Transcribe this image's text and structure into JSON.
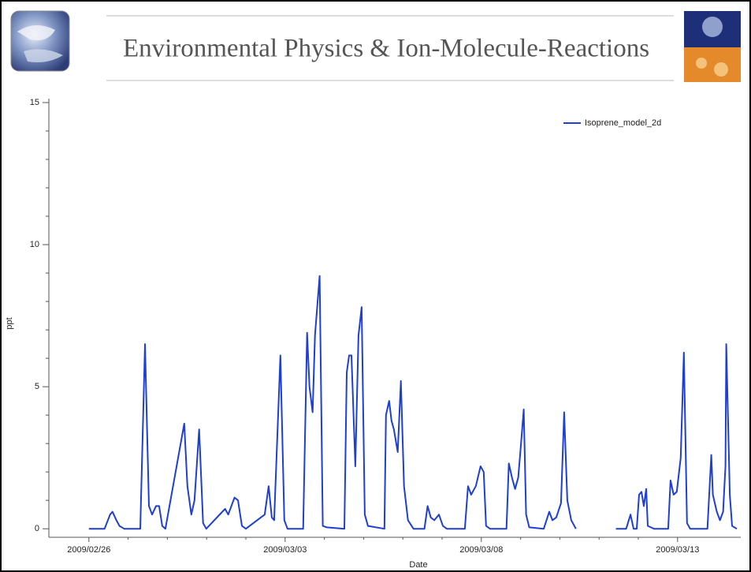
{
  "header": {
    "title": "Environmental Physics & Ion-Molecule-Reactions"
  },
  "chart_data": {
    "type": "line",
    "x_label": "Date",
    "y_label": "ppt",
    "legend_position": "top-right",
    "xlim": [
      -1.02,
      16.61
    ],
    "ylim": [
      -0.3,
      15
    ],
    "xticks": [
      {
        "value": 0,
        "label": "2009/02/26"
      },
      {
        "value": 5,
        "label": "2009/03/03"
      },
      {
        "value": 10,
        "label": "2009/03/08"
      },
      {
        "value": 15,
        "label": "2009/03/13"
      }
    ],
    "yticks": [
      0,
      5,
      10,
      15
    ],
    "x": [
      0,
      0.34,
      0.4,
      0.54,
      0.6,
      0.7,
      0.78,
      0.9,
      1.31,
      1.43,
      1.53,
      1.61,
      1.71,
      1.79,
      1.87,
      1.95,
      2.43,
      2.51,
      2.61,
      2.69,
      2.81,
      2.91,
      2.99,
      3.47,
      3.55,
      3.71,
      3.8,
      3.9,
      4.0,
      4.48,
      4.58,
      4.66,
      4.72,
      4.88,
      4.98,
      5.06,
      5.46,
      5.56,
      5.62,
      5.7,
      5.76,
      5.88,
      5.96,
      6.06,
      6.51,
      6.57,
      6.63,
      6.69,
      6.79,
      6.87,
      6.95,
      7.03,
      7.11,
      7.53,
      7.57,
      7.65,
      7.71,
      7.77,
      7.87,
      7.95,
      8.03,
      8.13,
      8.27,
      8.55,
      8.63,
      8.71,
      8.8,
      8.92,
      9.02,
      9.12,
      9.58,
      9.66,
      9.74,
      9.86,
      9.98,
      10.06,
      10.12,
      10.22,
      10.64,
      10.7,
      10.78,
      10.86,
      10.94,
      11.0,
      11.08,
      11.14,
      11.22,
      11.59,
      11.73,
      11.81,
      11.91,
      12.03,
      12.11,
      12.19,
      12.29,
      12.41,
      12.9,
      13.43,
      13.69,
      13.8,
      13.88,
      13.96,
      14.02,
      14.08,
      14.14,
      14.2,
      14.24,
      14.32,
      14.4,
      14.76,
      14.82,
      14.9,
      14.98,
      15.08,
      15.16,
      15.24,
      15.32,
      15.76,
      15.86,
      15.9,
      16.0,
      16.08,
      16.16,
      16.22,
      16.24,
      16.33,
      16.39,
      16.51
    ],
    "series": [
      {
        "name": "Isoprene_model_2d",
        "color": "#1f3fd0",
        "values": [
          0,
          0,
          0,
          0.5,
          0.6,
          0.3,
          0.1,
          0,
          0,
          6.5,
          0.8,
          0.5,
          0.8,
          0.8,
          0.1,
          0,
          3.7,
          1.5,
          0.5,
          1,
          3.5,
          0.2,
          0,
          0.7,
          0.5,
          1.1,
          1,
          0.1,
          0,
          0.5,
          1.5,
          0.4,
          0.3,
          6.1,
          0.3,
          0,
          0,
          6.9,
          5,
          4.1,
          6.8,
          8.9,
          0.1,
          0.05,
          0,
          5.5,
          6.1,
          6.1,
          2.2,
          6.8,
          7.8,
          0.5,
          0.1,
          0,
          4,
          4.5,
          3.8,
          3.5,
          2.7,
          5.2,
          1.5,
          0.3,
          0,
          0,
          0.8,
          0.4,
          0.3,
          0.5,
          0.1,
          0,
          0,
          1.5,
          1.2,
          1.5,
          2.2,
          2,
          0.1,
          0,
          0,
          2.3,
          1.8,
          1.4,
          1.8,
          2.8,
          4.2,
          0.5,
          0.05,
          0,
          0.6,
          0.3,
          0.4,
          0.9,
          4.1,
          1,
          0.3,
          0,
          null,
          0,
          0,
          0.5,
          0,
          0,
          1.2,
          1.3,
          0.8,
          1.4,
          0.1,
          0.05,
          0,
          0,
          1.7,
          1.2,
          1.3,
          2.5,
          6.2,
          0.2,
          0,
          0,
          2.6,
          1.2,
          0.6,
          0.3,
          0.6,
          2.2,
          6.5,
          1.2,
          0.1,
          0
        ]
      }
    ]
  }
}
